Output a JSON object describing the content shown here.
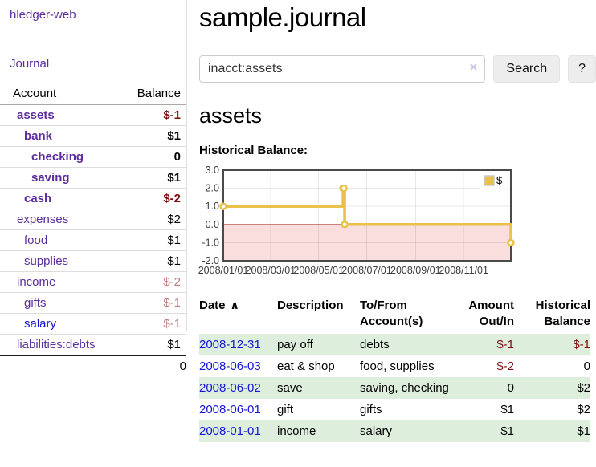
{
  "sidebar": {
    "brand": "hledger-web",
    "nav": {
      "journal_label": "Journal"
    },
    "accounts_table": {
      "headers": {
        "account": "Account",
        "balance": "Balance"
      },
      "rows": [
        {
          "name": "assets",
          "balance": "$-1",
          "indent": 0,
          "bold": true,
          "name_style": "purple",
          "balance_style": "neg"
        },
        {
          "name": "bank",
          "balance": "$1",
          "indent": 1,
          "bold": true,
          "name_style": "purple",
          "balance_style": "pos"
        },
        {
          "name": "checking",
          "balance": "0",
          "indent": 2,
          "bold": true,
          "name_style": "purple",
          "balance_style": "pos"
        },
        {
          "name": "saving",
          "balance": "$1",
          "indent": 2,
          "bold": true,
          "name_style": "purple",
          "balance_style": "pos"
        },
        {
          "name": "cash",
          "balance": "$-2",
          "indent": 1,
          "bold": true,
          "name_style": "purple",
          "balance_style": "neg"
        },
        {
          "name": "expenses",
          "balance": "$2",
          "indent": 0,
          "bold": false,
          "name_style": "purple",
          "balance_style": "pos"
        },
        {
          "name": "food",
          "balance": "$1",
          "indent": 1,
          "bold": false,
          "name_style": "purple",
          "balance_style": "pos"
        },
        {
          "name": "supplies",
          "balance": "$1",
          "indent": 1,
          "bold": false,
          "name_style": "purple",
          "balance_style": "pos"
        },
        {
          "name": "income",
          "balance": "$-2",
          "indent": 0,
          "bold": false,
          "name_style": "purple",
          "balance_style": "neg-faded"
        },
        {
          "name": "gifts",
          "balance": "$-1",
          "indent": 1,
          "bold": false,
          "name_style": "purple",
          "balance_style": "neg-faded"
        },
        {
          "name": "salary",
          "balance": "$-1",
          "indent": 1,
          "bold": false,
          "name_style": "blue",
          "balance_style": "neg-faded"
        },
        {
          "name": "liabilities:debts",
          "balance": "$1",
          "indent": 0,
          "bold": false,
          "name_style": "purple",
          "balance_style": "pos"
        }
      ],
      "total": "0"
    }
  },
  "main": {
    "title": "sample.journal",
    "search": {
      "value": "inacct:assets",
      "clear_icon": "×",
      "button_label": "Search",
      "help_label": "?"
    },
    "account_heading": "assets",
    "chart_heading": "Historical Balance:"
  },
  "chart_data": {
    "type": "line",
    "step": true,
    "title": "Historical Balance",
    "series": [
      {
        "name": "$",
        "color": "#e8c24a",
        "points": [
          [
            "2008-01-01",
            1
          ],
          [
            "2008-06-01",
            2
          ],
          [
            "2008-06-02",
            2
          ],
          [
            "2008-06-03",
            0
          ],
          [
            "2008-12-31",
            -1
          ]
        ]
      }
    ],
    "x_range": [
      "2008-01-01",
      "2008-12-31"
    ],
    "x_ticks": [
      "2008/01/01",
      "2008/03/01",
      "2008/05/01",
      "2008/07/01",
      "2008/09/01",
      "2008/11/01"
    ],
    "y_ticks": [
      3.0,
      2.0,
      1.0,
      0.0,
      -1.0,
      -2.0
    ],
    "ylim": [
      -2.0,
      3.0
    ],
    "grid": true,
    "legend_position": "top-right",
    "negative_region_color": "#fadddd",
    "zero_line_color": "#8f0505",
    "border_color": "#4a4a4a",
    "marker_fill": "#ffffff"
  },
  "register_table": {
    "headers": {
      "date": "Date",
      "sort_icon": "∧",
      "description": "Description",
      "accounts": "To/From Account(s)",
      "amount": "Amount Out/In",
      "balance": "Historical Balance"
    },
    "rows": [
      {
        "date": "2008-12-31",
        "description": "pay off",
        "accounts": "debts",
        "amount": "$-1",
        "balance": "$-1"
      },
      {
        "date": "2008-06-03",
        "description": "eat & shop",
        "accounts": "food, supplies",
        "amount": "$-2",
        "balance": "0"
      },
      {
        "date": "2008-06-02",
        "description": "save",
        "accounts": "saving, checking",
        "amount": "0",
        "balance": "$2"
      },
      {
        "date": "2008-06-01",
        "description": "gift",
        "accounts": "gifts",
        "amount": "$1",
        "balance": "$2"
      },
      {
        "date": "2008-01-01",
        "description": "income",
        "accounts": "salary",
        "amount": "$1",
        "balance": "$1"
      }
    ]
  },
  "colors": {
    "link_purple": "#5c2d9e",
    "link_blue": "#1515d6",
    "negative_red": "#7f0d0a",
    "negative_faded": "#bf7d7d",
    "row_stripe_green": "#ddeedd",
    "chart_gold": "#e8c24a",
    "chart_negative_pink": "#fadddd"
  }
}
